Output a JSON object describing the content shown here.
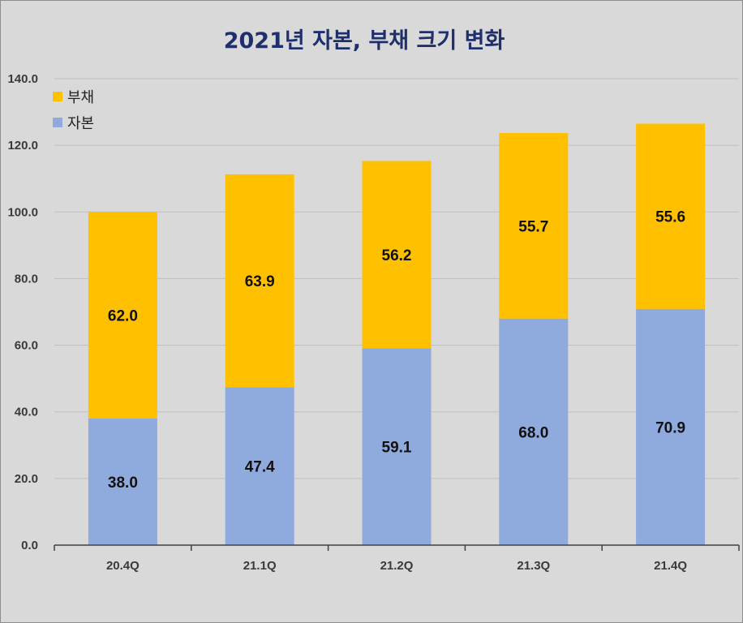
{
  "chart_data": {
    "type": "bar",
    "stacked": true,
    "title": "2021년 자본, 부채 크기 변화",
    "categories": [
      "20.4Q",
      "21.1Q",
      "21.2Q",
      "21.3Q",
      "21.4Q"
    ],
    "series": [
      {
        "name": "자본",
        "color": "#8faadc",
        "values": [
          38.0,
          47.4,
          59.1,
          68.0,
          70.9
        ]
      },
      {
        "name": "부채",
        "color": "#ffc000",
        "values": [
          62.0,
          63.9,
          56.2,
          55.7,
          55.6
        ]
      }
    ],
    "y_ticks": [
      "0.0",
      "20.0",
      "40.0",
      "60.0",
      "80.0",
      "100.0",
      "120.0",
      "140.0"
    ],
    "ylim": [
      0,
      140
    ],
    "grid": true,
    "legend_position": "top-left",
    "legend_order": [
      "부채",
      "자본"
    ],
    "data_labels": true,
    "background_color": "#d9d9d9",
    "grid_color": "#bfbfbf",
    "title_color": "#1f2f6b"
  }
}
